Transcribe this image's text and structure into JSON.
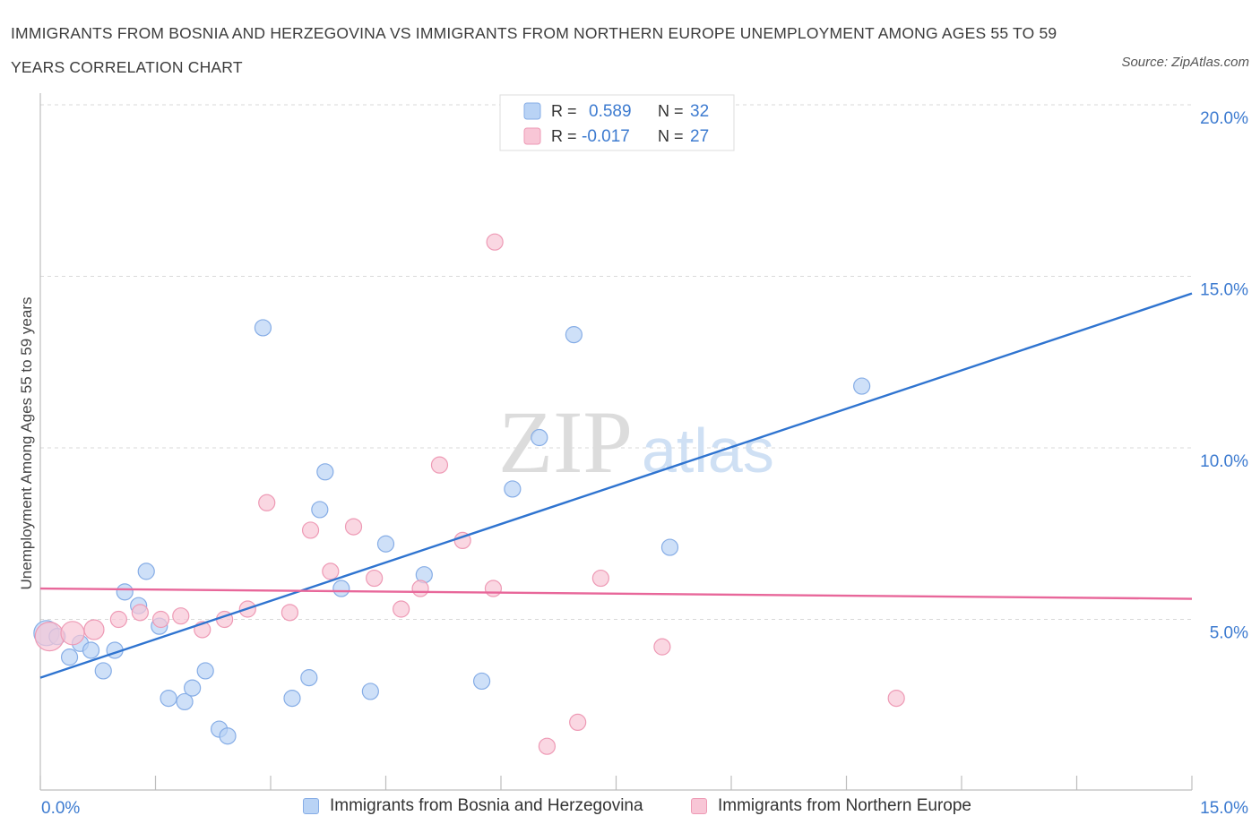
{
  "title": "IMMIGRANTS FROM BOSNIA AND HERZEGOVINA VS IMMIGRANTS FROM NORTHERN EUROPE UNEMPLOYMENT AMONG AGES 55 TO 59 YEARS CORRELATION CHART",
  "source": "Source: ZipAtlas.com",
  "watermark": {
    "zip": "ZIP",
    "atlas": "atlas"
  },
  "colors": {
    "blue_fill": "#b9d3f5",
    "blue_stroke": "#86ade6",
    "blue_line": "#2f74d0",
    "pink_fill": "#f8c6d6",
    "pink_stroke": "#ee9ab5",
    "pink_line": "#e8679a",
    "tick_label": "#3d7bd0",
    "grid": "#d9d9d9"
  },
  "legend": {
    "rows": [
      {
        "r_label": "R =",
        "r_value": "0.589",
        "n_label": "N =",
        "n_value": "32"
      },
      {
        "r_label": "R =",
        "r_value": "-0.017",
        "n_label": "N =",
        "n_value": "27"
      }
    ]
  },
  "bottom_legend": {
    "series1": "Immigrants from Bosnia and Herzegovina",
    "series2": "Immigrants from Northern Europe"
  },
  "chart_data": {
    "type": "scatter",
    "xlabel": "",
    "ylabel": "Unemployment Among Ages 55 to 59 years",
    "xlim": [
      0,
      15
    ],
    "ylim": [
      0,
      20
    ],
    "x_tick_labels": [
      "0.0%",
      "15.0%"
    ],
    "y_ticks": [
      5,
      10,
      15,
      20
    ],
    "y_tick_labels": [
      "5.0%",
      "10.0%",
      "15.0%",
      "20.0%"
    ],
    "grid": "horizontal dashed",
    "legend_position": "top-center",
    "series": [
      {
        "name": "Immigrants from Bosnia and Herzegovina",
        "color": "blue",
        "trend": {
          "x0": 0,
          "y0": 3.3,
          "x1": 15,
          "y1": 14.5
        },
        "points": [
          [
            0.08,
            4.6,
            14
          ],
          [
            0.22,
            4.5,
            9
          ],
          [
            0.38,
            3.9,
            9
          ],
          [
            0.52,
            4.3,
            9
          ],
          [
            0.66,
            4.1,
            9
          ],
          [
            0.82,
            3.5,
            9
          ],
          [
            0.97,
            4.1,
            9
          ],
          [
            1.1,
            5.8,
            9
          ],
          [
            1.28,
            5.4,
            9
          ],
          [
            1.38,
            6.4,
            9
          ],
          [
            1.55,
            4.8,
            9
          ],
          [
            1.67,
            2.7,
            9
          ],
          [
            1.88,
            2.6,
            9
          ],
          [
            1.98,
            3.0,
            9
          ],
          [
            2.15,
            3.5,
            9
          ],
          [
            2.33,
            1.8,
            9
          ],
          [
            2.44,
            1.6,
            9
          ],
          [
            2.9,
            13.5,
            9
          ],
          [
            3.28,
            2.7,
            9
          ],
          [
            3.5,
            3.3,
            9
          ],
          [
            3.64,
            8.2,
            9
          ],
          [
            3.71,
            9.3,
            9
          ],
          [
            3.92,
            5.9,
            9
          ],
          [
            4.3,
            2.9,
            9
          ],
          [
            4.5,
            7.2,
            9
          ],
          [
            5.0,
            6.3,
            9
          ],
          [
            5.75,
            3.2,
            9
          ],
          [
            6.15,
            8.8,
            9
          ],
          [
            6.5,
            10.3,
            9
          ],
          [
            6.95,
            13.3,
            9
          ],
          [
            8.2,
            7.1,
            9
          ],
          [
            10.7,
            11.8,
            9
          ]
        ]
      },
      {
        "name": "Immigrants from Northern Europe",
        "color": "pink",
        "trend": {
          "x0": 0,
          "y0": 5.9,
          "x1": 15,
          "y1": 5.6
        },
        "points": [
          [
            0.12,
            4.5,
            16
          ],
          [
            0.42,
            4.6,
            13
          ],
          [
            0.7,
            4.7,
            11
          ],
          [
            1.02,
            5.0,
            9
          ],
          [
            1.3,
            5.2,
            9
          ],
          [
            1.57,
            5.0,
            9
          ],
          [
            1.83,
            5.1,
            9
          ],
          [
            2.11,
            4.7,
            9
          ],
          [
            2.4,
            5.0,
            9
          ],
          [
            2.7,
            5.3,
            9
          ],
          [
            2.95,
            8.4,
            9
          ],
          [
            3.25,
            5.2,
            9
          ],
          [
            3.52,
            7.6,
            9
          ],
          [
            3.78,
            6.4,
            9
          ],
          [
            4.08,
            7.7,
            9
          ],
          [
            4.35,
            6.2,
            9
          ],
          [
            4.7,
            5.3,
            9
          ],
          [
            4.95,
            5.9,
            9
          ],
          [
            5.2,
            9.5,
            9
          ],
          [
            5.5,
            7.3,
            9
          ],
          [
            5.9,
            5.9,
            9
          ],
          [
            5.92,
            16.0,
            9
          ],
          [
            6.6,
            1.3,
            9
          ],
          [
            7.0,
            2.0,
            9
          ],
          [
            7.3,
            6.2,
            9
          ],
          [
            8.1,
            4.2,
            9
          ],
          [
            11.15,
            2.7,
            9
          ]
        ]
      }
    ]
  }
}
